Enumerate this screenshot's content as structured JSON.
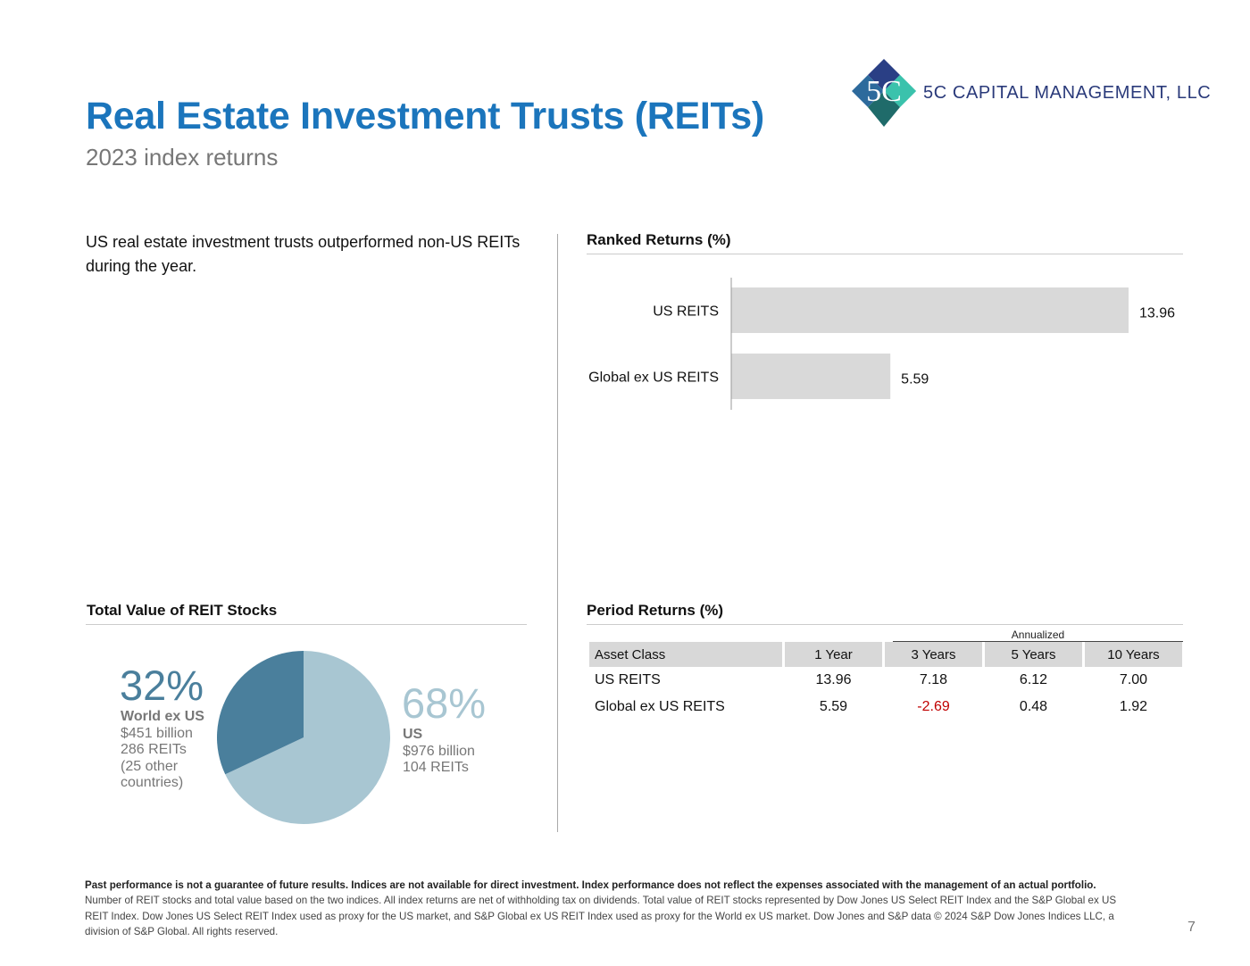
{
  "header": {
    "title": "Real Estate Investment Trusts (REITs)",
    "subtitle": "2023 index returns",
    "company": "5C CAPITAL MANAGEMENT, LLC",
    "logo_text": "5C"
  },
  "intro": "US real estate investment trusts outperformed non-US REITs during the year.",
  "ranked_returns": {
    "title": "Ranked Returns (%)"
  },
  "chart_data": {
    "type": "bar",
    "orientation": "horizontal",
    "title": "Ranked Returns (%)",
    "categories": [
      "US REITS",
      "Global ex US REITS"
    ],
    "values": [
      13.96,
      5.59
    ],
    "value_labels": [
      "13.96",
      "5.59"
    ],
    "xlim": [
      0,
      16
    ],
    "bar_color": "#d9d9d9",
    "grid": false,
    "legend": "none"
  },
  "total_value": {
    "title": "Total Value of REIT Stocks",
    "slices": [
      {
        "name": "World ex US",
        "share": 0.32,
        "pct": "32%",
        "details": [
          "$451 billion",
          "286 REITs",
          "(25 other",
          "countries)"
        ],
        "color": "#4a7f9c"
      },
      {
        "name": "US",
        "share": 0.68,
        "pct": "68%",
        "details": [
          "$976 billion",
          "104 REITs"
        ],
        "color": "#a8c6d2"
      }
    ]
  },
  "period_returns": {
    "title": "Period Returns (%)",
    "annualized_label": "Annualized",
    "columns": [
      "Asset Class",
      "1 Year",
      "3 Years",
      "5 Years",
      "10 Years"
    ],
    "rows": [
      {
        "cells": [
          "US REITS",
          "13.96",
          "7.18",
          "6.12",
          "7.00"
        ]
      },
      {
        "cells": [
          "Global ex US REITS",
          "5.59",
          "-2.69",
          "0.48",
          "1.92"
        ]
      }
    ]
  },
  "footer": {
    "disclaimer_bold": "Past performance is not a guarantee of future results. Indices are not available for direct investment. Index performance does not reflect the expenses associated with the management of an actual portfolio.",
    "disclaimer": "Number of REIT stocks and total value based on the two indices. All index returns are net of withholding tax on dividends. Total value of REIT stocks represented by Dow Jones US Select REIT Index and the S&P Global ex US REIT Index. Dow Jones US Select REIT Index used as proxy for the US market, and S&P Global ex US REIT Index used as proxy for the World ex US market. Dow Jones and S&P data © 2024 S&P Dow Jones Indices LLC, a division of S&P Global. All rights reserved.",
    "page_number": "7"
  },
  "colors": {
    "title_blue": "#1b75bc",
    "company_navy": "#2a3a7a",
    "negative_red": "#c00000"
  }
}
